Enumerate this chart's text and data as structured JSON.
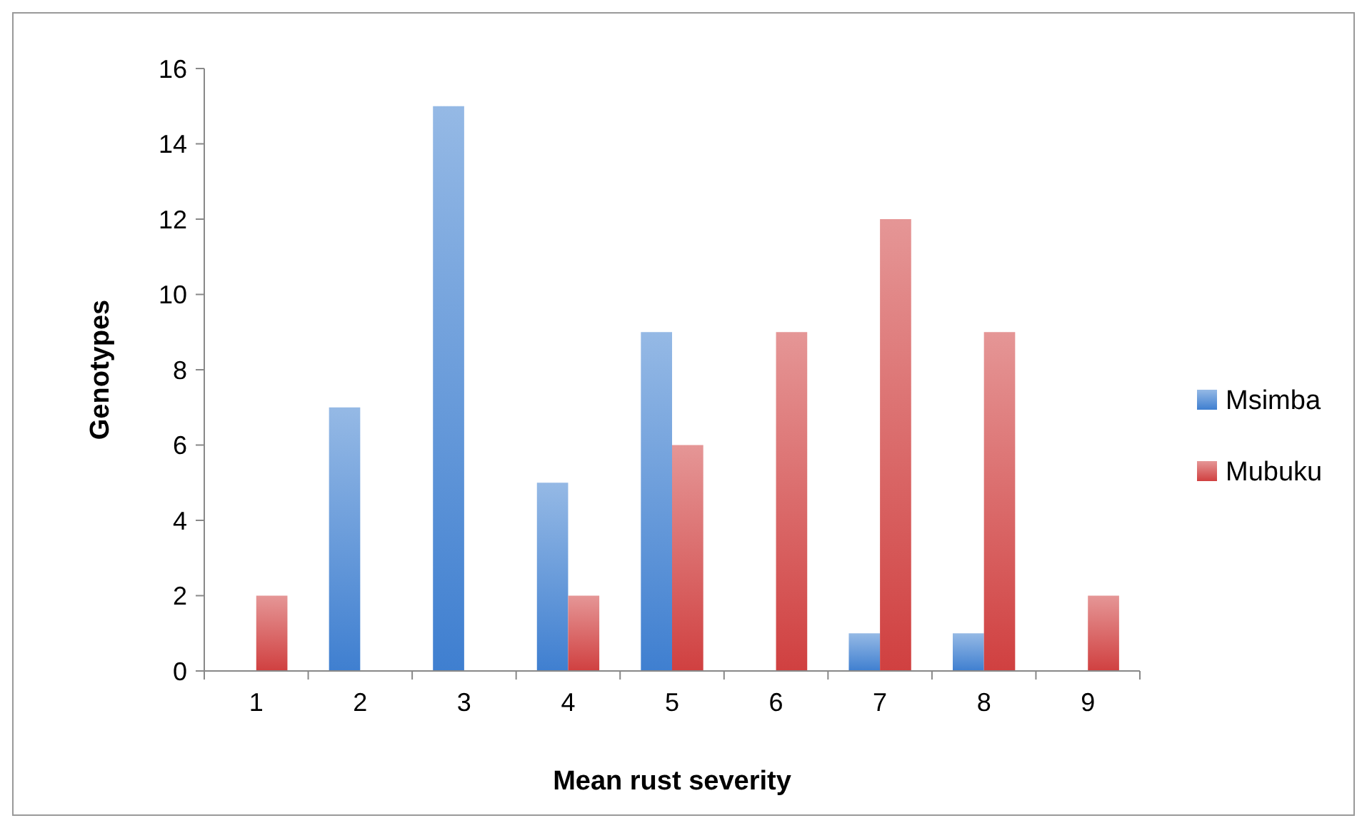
{
  "chart_data": {
    "type": "bar",
    "xlabel": "Mean rust severity",
    "ylabel": "Genotypes",
    "categories": [
      "1",
      "2",
      "3",
      "4",
      "5",
      "6",
      "7",
      "8",
      "9"
    ],
    "series": [
      {
        "name": "Msimba",
        "color": "#3f7fd0",
        "values": [
          0,
          7,
          15,
          5,
          9,
          0,
          1,
          1,
          0
        ]
      },
      {
        "name": "Mubuku",
        "color": "#d04040",
        "values": [
          2,
          0,
          0,
          2,
          6,
          9,
          12,
          9,
          2
        ]
      }
    ],
    "ylim": [
      0,
      16
    ],
    "yticks": [
      0,
      2,
      4,
      6,
      8,
      10,
      12,
      14,
      16
    ],
    "grid": false,
    "legend": "right"
  }
}
